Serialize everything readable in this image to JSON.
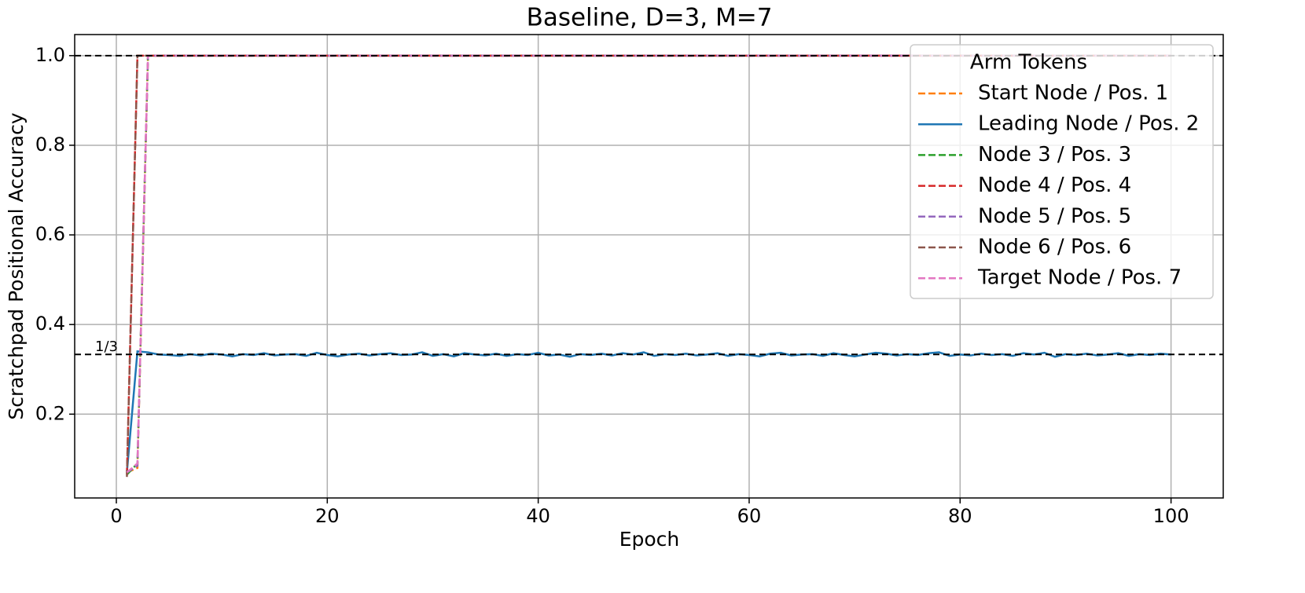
{
  "chart_data": {
    "type": "line",
    "title": "Baseline, D=3, M=7",
    "xlabel": "Epoch",
    "ylabel": "Scratchpad Positional Accuracy",
    "xlim": [
      -3.95,
      104.95
    ],
    "ylim": [
      0.013,
      1.047
    ],
    "xticks": [
      0,
      20,
      40,
      60,
      80,
      100
    ],
    "yticks": [
      0.2,
      0.4,
      0.6,
      0.8,
      {
        "value": 1,
        "label": "1.0"
      }
    ],
    "grid": true,
    "legend": {
      "title": "Arm Tokens",
      "loc": "upper right"
    },
    "hlines": [
      {
        "value": 0.3333,
        "label": "1/3",
        "color": "#000000"
      },
      {
        "value": 1,
        "color": "#000000"
      }
    ],
    "x": [
      1,
      2,
      3,
      4,
      5,
      6,
      7,
      8,
      9,
      10,
      11,
      12,
      13,
      14,
      15,
      16,
      17,
      18,
      19,
      20,
      21,
      22,
      23,
      24,
      25,
      26,
      27,
      28,
      29,
      30,
      31,
      32,
      33,
      34,
      35,
      36,
      37,
      38,
      39,
      40,
      41,
      42,
      43,
      44,
      45,
      46,
      47,
      48,
      49,
      50,
      51,
      52,
      53,
      54,
      55,
      56,
      57,
      58,
      59,
      60,
      61,
      62,
      63,
      64,
      65,
      66,
      67,
      68,
      69,
      70,
      71,
      72,
      73,
      74,
      75,
      76,
      77,
      78,
      79,
      80,
      81,
      82,
      83,
      84,
      85,
      86,
      87,
      88,
      89,
      90,
      91,
      92,
      93,
      94,
      95,
      96,
      97,
      98,
      99,
      100
    ],
    "series": [
      {
        "name": "Start Node / Pos. 1",
        "color": "#ff7f0e",
        "dashed": true,
        "values": [
          0.07,
          0.08,
          1,
          1,
          1,
          1,
          1,
          1,
          1,
          1,
          1,
          1,
          1,
          1,
          1,
          1,
          1,
          1,
          1,
          1,
          1,
          1,
          1,
          1,
          1,
          1,
          1,
          1,
          1,
          1,
          1,
          1,
          1,
          1,
          1,
          1,
          1,
          1,
          1,
          1,
          1,
          1,
          1,
          1,
          1,
          1,
          1,
          1,
          1,
          1,
          1,
          1,
          1,
          1,
          1,
          1,
          1,
          1,
          1,
          1,
          1,
          1,
          1,
          1,
          1,
          1,
          1,
          1,
          1,
          1,
          1,
          1,
          1,
          1,
          1,
          1,
          1,
          1,
          1,
          1,
          1,
          1,
          1,
          1,
          1,
          1,
          1,
          1,
          1,
          1,
          1,
          1,
          1,
          1,
          1,
          1,
          1,
          1,
          1,
          1
        ]
      },
      {
        "name": "Leading Node / Pos. 2",
        "color": "#1f77b4",
        "dashed": false,
        "values": [
          0.07,
          0.34,
          0.338,
          0.333,
          0.332,
          0.33,
          0.334,
          0.331,
          0.335,
          0.333,
          0.329,
          0.334,
          0.332,
          0.336,
          0.331,
          0.333,
          0.334,
          0.33,
          0.337,
          0.332,
          0.329,
          0.333,
          0.335,
          0.331,
          0.334,
          0.336,
          0.332,
          0.333,
          0.338,
          0.33,
          0.334,
          0.329,
          0.336,
          0.333,
          0.331,
          0.335,
          0.33,
          0.334,
          0.332,
          0.337,
          0.331,
          0.333,
          0.328,
          0.334,
          0.332,
          0.335,
          0.331,
          0.336,
          0.333,
          0.338,
          0.33,
          0.334,
          0.332,
          0.335,
          0.331,
          0.333,
          0.336,
          0.33,
          0.334,
          0.332,
          0.329,
          0.335,
          0.337,
          0.331,
          0.333,
          0.334,
          0.33,
          0.336,
          0.332,
          0.329,
          0.333,
          0.337,
          0.335,
          0.331,
          0.334,
          0.332,
          0.336,
          0.338,
          0.33,
          0.333,
          0.331,
          0.335,
          0.332,
          0.334,
          0.33,
          0.336,
          0.333,
          0.337,
          0.328,
          0.334,
          0.332,
          0.335,
          0.331,
          0.333,
          0.336,
          0.33,
          0.334,
          0.332,
          0.335,
          0.333
        ]
      },
      {
        "name": "Node 3 / Pos. 3",
        "color": "#2ca02c",
        "dashed": true,
        "values": [
          0.065,
          0.09,
          1,
          1,
          1,
          1,
          1,
          1,
          1,
          1,
          1,
          1,
          1,
          1,
          1,
          1,
          1,
          1,
          1,
          1,
          1,
          1,
          1,
          1,
          1,
          1,
          1,
          1,
          1,
          1,
          1,
          1,
          1,
          1,
          1,
          1,
          1,
          1,
          1,
          1,
          1,
          1,
          1,
          1,
          1,
          1,
          1,
          1,
          1,
          1,
          1,
          1,
          1,
          1,
          1,
          1,
          1,
          1,
          1,
          1,
          1,
          1,
          1,
          1,
          1,
          1,
          1,
          1,
          1,
          1,
          1,
          1,
          1,
          1,
          1,
          1,
          1,
          1,
          1,
          1,
          1,
          1,
          1,
          1,
          1,
          1,
          1,
          1,
          1,
          1,
          1,
          1,
          1,
          1,
          1,
          1,
          1,
          1,
          1,
          1
        ]
      },
      {
        "name": "Node 4 / Pos. 4",
        "color": "#d62728",
        "dashed": true,
        "values": [
          0.065,
          1,
          1,
          1,
          1,
          1,
          1,
          1,
          1,
          1,
          1,
          1,
          1,
          1,
          1,
          1,
          1,
          1,
          1,
          1,
          1,
          1,
          1,
          1,
          1,
          1,
          1,
          1,
          1,
          1,
          1,
          1,
          1,
          1,
          1,
          1,
          1,
          1,
          1,
          1,
          1,
          1,
          1,
          1,
          1,
          1,
          1,
          1,
          1,
          1,
          1,
          1,
          1,
          1,
          1,
          1,
          1,
          1,
          1,
          1,
          1,
          1,
          1,
          1,
          1,
          1,
          1,
          1,
          1,
          1,
          1,
          1,
          1,
          1,
          1,
          1,
          1,
          1,
          1,
          1,
          1,
          1,
          1,
          1,
          1,
          1,
          1,
          1,
          1,
          1,
          1,
          1,
          1,
          1,
          1,
          1,
          1,
          1,
          1,
          1
        ]
      },
      {
        "name": "Node 5 / Pos. 5",
        "color": "#9467bd",
        "dashed": true,
        "values": [
          0.07,
          0.085,
          1,
          1,
          1,
          1,
          1,
          1,
          1,
          1,
          1,
          1,
          1,
          1,
          1,
          1,
          1,
          1,
          1,
          1,
          1,
          1,
          1,
          1,
          1,
          1,
          1,
          1,
          1,
          1,
          1,
          1,
          1,
          1,
          1,
          1,
          1,
          1,
          1,
          1,
          1,
          1,
          1,
          1,
          1,
          1,
          1,
          1,
          1,
          1,
          1,
          1,
          1,
          1,
          1,
          1,
          1,
          1,
          1,
          1,
          1,
          1,
          1,
          1,
          1,
          1,
          1,
          1,
          1,
          1,
          1,
          1,
          1,
          1,
          1,
          1,
          1,
          1,
          1,
          1,
          1,
          1,
          1,
          1,
          1,
          1,
          1,
          1,
          1,
          1,
          1,
          1,
          1,
          1,
          1,
          1,
          1,
          1,
          1,
          1
        ]
      },
      {
        "name": "Node 6 / Pos. 6",
        "color": "#8c564b",
        "dashed": true,
        "values": [
          0.06,
          1,
          1,
          1,
          1,
          1,
          1,
          1,
          1,
          1,
          1,
          1,
          1,
          1,
          1,
          1,
          1,
          1,
          1,
          1,
          1,
          1,
          1,
          1,
          1,
          1,
          1,
          1,
          1,
          1,
          1,
          1,
          1,
          1,
          1,
          1,
          1,
          1,
          1,
          1,
          1,
          1,
          1,
          1,
          1,
          1,
          1,
          1,
          1,
          1,
          1,
          1,
          1,
          1,
          1,
          1,
          1,
          1,
          1,
          1,
          1,
          1,
          1,
          1,
          1,
          1,
          1,
          1,
          1,
          1,
          1,
          1,
          1,
          1,
          1,
          1,
          1,
          1,
          1,
          1,
          1,
          1,
          1,
          1,
          1,
          1,
          1,
          1,
          1,
          1,
          1,
          1,
          1,
          1,
          1,
          1,
          1,
          1,
          1,
          1
        ]
      },
      {
        "name": "Target Node / Pos. 7",
        "color": "#e377c2",
        "dashed": true,
        "values": [
          0.07,
          0.09,
          1,
          1,
          1,
          1,
          1,
          1,
          1,
          1,
          1,
          1,
          1,
          1,
          1,
          1,
          1,
          1,
          1,
          1,
          1,
          1,
          1,
          1,
          1,
          1,
          1,
          1,
          1,
          1,
          1,
          1,
          1,
          1,
          1,
          1,
          1,
          1,
          1,
          1,
          1,
          1,
          1,
          1,
          1,
          1,
          1,
          1,
          1,
          1,
          1,
          1,
          1,
          1,
          1,
          1,
          1,
          1,
          1,
          1,
          1,
          1,
          1,
          1,
          1,
          1,
          1,
          1,
          1,
          1,
          1,
          1,
          1,
          1,
          1,
          1,
          1,
          1,
          1,
          1,
          1,
          1,
          1,
          1,
          1,
          1,
          1,
          1,
          1,
          1,
          1,
          1,
          1,
          1,
          1,
          1,
          1,
          1,
          1,
          1
        ]
      }
    ]
  }
}
